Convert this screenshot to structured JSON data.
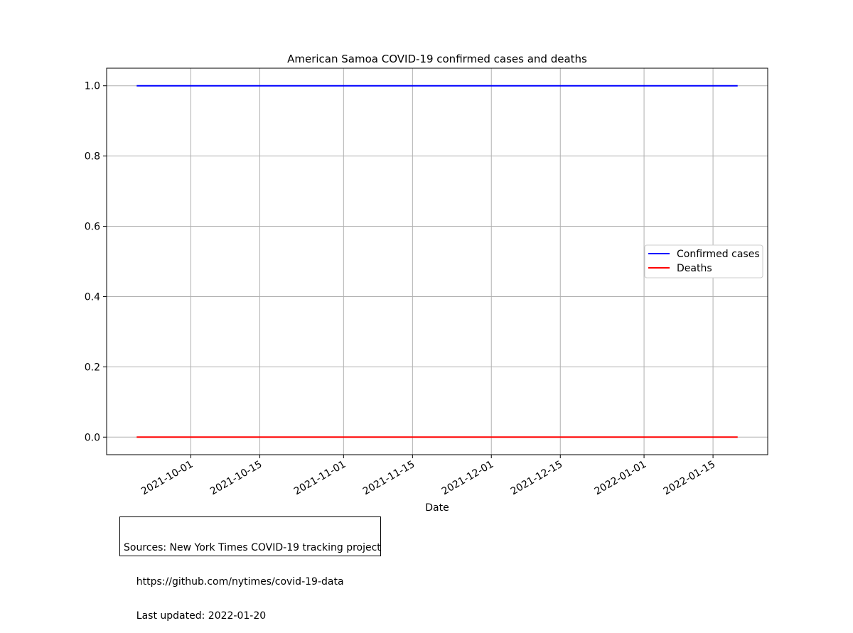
{
  "chart_data": {
    "type": "line",
    "title": "American Samoa COVID-19 confirmed cases and deaths",
    "xlabel": "Date",
    "ylabel": "",
    "x_range": [
      "2021-09-20",
      "2022-01-20"
    ],
    "ylim": [
      -0.05,
      1.05
    ],
    "x_ticks": [
      "2021-10-01",
      "2021-10-15",
      "2021-11-01",
      "2021-11-15",
      "2021-12-01",
      "2021-12-15",
      "2022-01-01",
      "2022-01-15"
    ],
    "y_ticks": [
      "0.0",
      "0.2",
      "0.4",
      "0.6",
      "0.8",
      "1.0"
    ],
    "grid": true,
    "legend_position": "center-right",
    "series": [
      {
        "name": "Confirmed cases",
        "color": "#0000ff",
        "x": [
          "2021-09-20",
          "2022-01-20"
        ],
        "values": [
          1,
          1
        ]
      },
      {
        "name": "Deaths",
        "color": "#ff0000",
        "x": [
          "2021-09-20",
          "2022-01-20"
        ],
        "values": [
          0,
          0
        ]
      }
    ]
  },
  "source_note": {
    "line1": "Sources: New York Times COVID-19 tracking project",
    "line2": "    https://github.com/nytimes/covid-19-data",
    "line3": "    Last updated: 2022-01-20"
  }
}
